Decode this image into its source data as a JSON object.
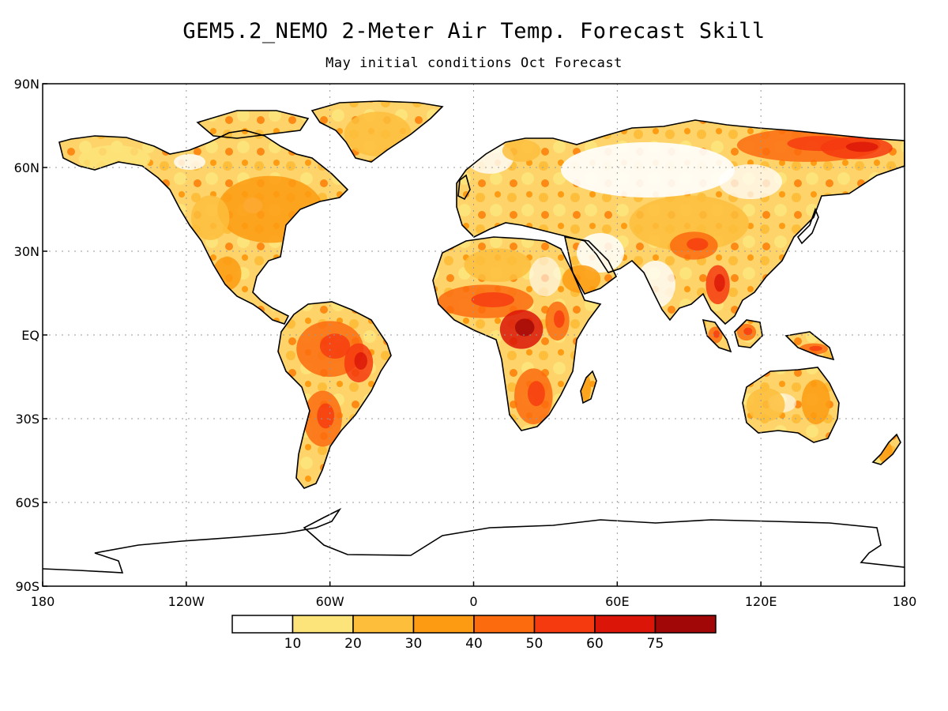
{
  "title": "GEM5.2_NEMO 2-Meter Air Temp. Forecast Skill",
  "subtitle": "May initial conditions  Oct Forecast",
  "map": {
    "projection": "equirectangular",
    "lon_range": [
      -180,
      180
    ],
    "lat_range": [
      -90,
      90
    ],
    "grid": "dotted",
    "lat_ticks": [
      {
        "value": 90,
        "label": "90N"
      },
      {
        "value": 60,
        "label": "60N"
      },
      {
        "value": 30,
        "label": "30N"
      },
      {
        "value": 0,
        "label": "EQ"
      },
      {
        "value": -30,
        "label": "30S"
      },
      {
        "value": -60,
        "label": "60S"
      },
      {
        "value": -90,
        "label": "90S"
      }
    ],
    "lon_ticks": [
      {
        "value": -180,
        "label": "180"
      },
      {
        "value": -120,
        "label": "120W"
      },
      {
        "value": -60,
        "label": "60W"
      },
      {
        "value": 0,
        "label": "0"
      },
      {
        "value": 60,
        "label": "60E"
      },
      {
        "value": 120,
        "label": "120E"
      },
      {
        "value": 180,
        "label": "180"
      }
    ]
  },
  "colorbar": {
    "levels": [
      "10",
      "20",
      "30",
      "40",
      "50",
      "60",
      "75"
    ],
    "colors": [
      "#ffffff",
      "#fde47a",
      "#fdbe3c",
      "#fd9b12",
      "#fc6b0e",
      "#f53a0f",
      "#db1508",
      "#a00706"
    ]
  },
  "skill_regions": [
    {
      "name": "canada-east-usa",
      "lon": -85,
      "lat": 45,
      "rx": 22,
      "ry": 12,
      "level": 3
    },
    {
      "name": "alaska",
      "lon": -150,
      "lat": 63,
      "rx": 15,
      "ry": 5,
      "level": 1
    },
    {
      "name": "western-usa",
      "lon": -110,
      "lat": 42,
      "rx": 8,
      "ry": 8,
      "level": 2
    },
    {
      "name": "mexico",
      "lon": -103,
      "lat": 22,
      "rx": 6,
      "ry": 6,
      "level": 3
    },
    {
      "name": "greenland",
      "lon": -40,
      "lat": 72,
      "rx": 14,
      "ry": 8,
      "level": 2
    },
    {
      "name": "amazon",
      "lon": -60,
      "lat": -5,
      "rx": 14,
      "ry": 10,
      "level": 4
    },
    {
      "name": "brazil-east",
      "lon": -48,
      "lat": -10,
      "rx": 6,
      "ry": 7,
      "level": 5
    },
    {
      "name": "argentina",
      "lon": -63,
      "lat": -30,
      "rx": 8,
      "ry": 10,
      "level": 4
    },
    {
      "name": "sahel",
      "lon": 5,
      "lat": 12,
      "rx": 20,
      "ry": 6,
      "level": 4
    },
    {
      "name": "central-africa",
      "lon": 20,
      "lat": 2,
      "rx": 9,
      "ry": 7,
      "level": 6
    },
    {
      "name": "east-africa",
      "lon": 35,
      "lat": 5,
      "rx": 5,
      "ry": 7,
      "level": 4
    },
    {
      "name": "southern-africa",
      "lon": 25,
      "lat": -22,
      "rx": 8,
      "ry": 10,
      "level": 4
    },
    {
      "name": "sahara",
      "lon": 10,
      "lat": 25,
      "rx": 14,
      "ry": 6,
      "level": 2
    },
    {
      "name": "arabia",
      "lon": 45,
      "lat": 20,
      "rx": 8,
      "ry": 5,
      "level": 3
    },
    {
      "name": "scandinavia",
      "lon": 20,
      "lat": 66,
      "rx": 8,
      "ry": 4,
      "level": 2
    },
    {
      "name": "siberia-north",
      "lon": 140,
      "lat": 68,
      "rx": 30,
      "ry": 6,
      "level": 4
    },
    {
      "name": "siberia-east",
      "lon": 160,
      "lat": 67,
      "rx": 15,
      "ry": 4,
      "level": 5
    },
    {
      "name": "central-asia",
      "lon": 90,
      "lat": 40,
      "rx": 25,
      "ry": 10,
      "level": 2
    },
    {
      "name": "tibet",
      "lon": 92,
      "lat": 32,
      "rx": 10,
      "ry": 5,
      "level": 4
    },
    {
      "name": "indochina",
      "lon": 102,
      "lat": 18,
      "rx": 5,
      "ry": 7,
      "level": 5
    },
    {
      "name": "borneo",
      "lon": 114,
      "lat": 1,
      "rx": 4,
      "ry": 3,
      "level": 4
    },
    {
      "name": "sumatra",
      "lon": 101,
      "lat": 0,
      "rx": 3,
      "ry": 3,
      "level": 4
    },
    {
      "name": "new-guinea",
      "lon": 142,
      "lat": -5,
      "rx": 6,
      "ry": 2,
      "level": 4
    },
    {
      "name": "australia-east",
      "lon": 143,
      "lat": -24,
      "rx": 6,
      "ry": 8,
      "level": 3
    },
    {
      "name": "australia-west",
      "lon": 122,
      "lat": -25,
      "rx": 8,
      "ry": 6,
      "level": 2
    },
    {
      "name": "madagascar",
      "lon": 47,
      "lat": -19,
      "rx": 2,
      "ry": 5,
      "level": 3
    },
    {
      "name": "new-zealand",
      "lon": 172,
      "lat": -42,
      "rx": 3,
      "ry": 4,
      "level": 3
    }
  ]
}
